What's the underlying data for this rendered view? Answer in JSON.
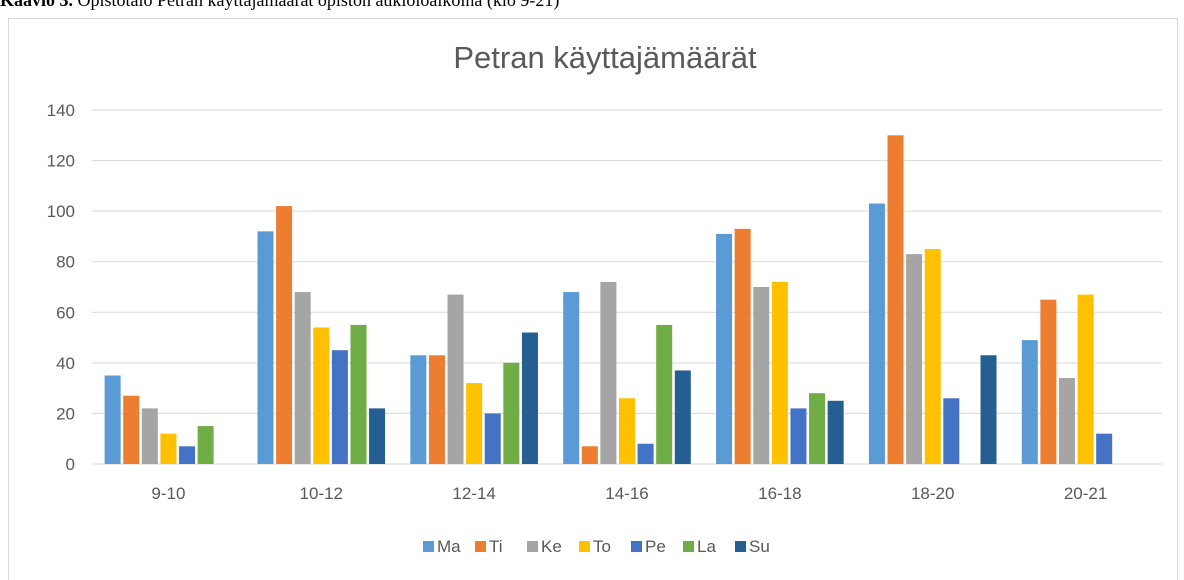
{
  "chart_data": {
    "type": "bar",
    "caption_label": "Kaavio 3.",
    "caption": "Opistotalo Petran käyttäjämäärät opiston aukioloaikoina (klo 9-21)",
    "title": "Petran käyttajämäärät",
    "categories": [
      "9-10",
      "10-12",
      "12-14",
      "14-16",
      "16-18",
      "18-20",
      "20-21"
    ],
    "series": [
      {
        "name": "Ma",
        "color": "#5b9bd5",
        "values": [
          35,
          92,
          43,
          68,
          91,
          103,
          49
        ]
      },
      {
        "name": "Ti",
        "color": "#ed7d31",
        "values": [
          27,
          102,
          43,
          7,
          93,
          130,
          65
        ]
      },
      {
        "name": "Ke",
        "color": "#a5a5a5",
        "values": [
          22,
          68,
          67,
          72,
          70,
          83,
          34
        ]
      },
      {
        "name": "To",
        "color": "#ffc000",
        "values": [
          12,
          54,
          32,
          26,
          72,
          85,
          67
        ]
      },
      {
        "name": "Pe",
        "color": "#4472c4",
        "values": [
          7,
          45,
          20,
          8,
          22,
          26,
          12
        ]
      },
      {
        "name": "La",
        "color": "#70ad47",
        "values": [
          15,
          55,
          40,
          55,
          28,
          0,
          0
        ]
      },
      {
        "name": "Su",
        "color": "#255e91",
        "values": [
          0,
          22,
          52,
          37,
          25,
          43,
          0
        ]
      }
    ],
    "ylim": [
      0,
      140
    ],
    "yticks": [
      0,
      20,
      40,
      60,
      80,
      100,
      120,
      140
    ],
    "grid": true,
    "legend": "bottom"
  }
}
